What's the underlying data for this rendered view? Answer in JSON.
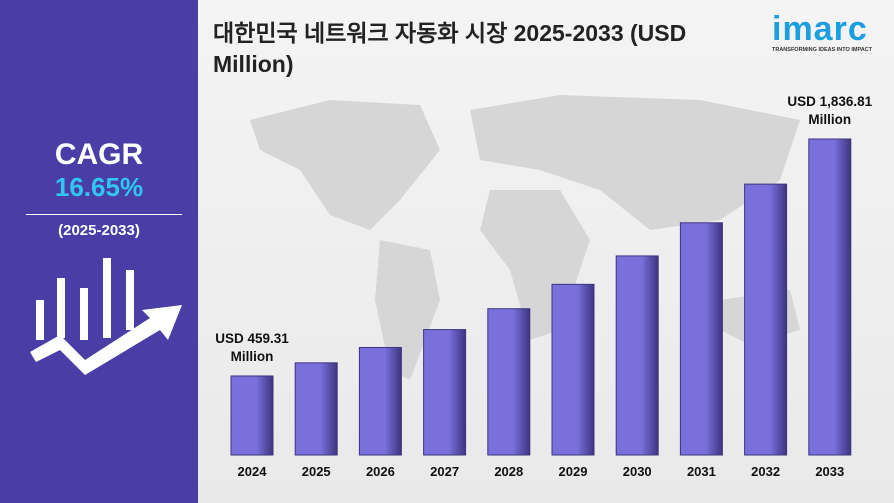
{
  "sidebar": {
    "label": "CAGR",
    "value": "16.65%",
    "period": "(2025-2033)"
  },
  "logo": {
    "name": "imarc",
    "tagline": "TRANSFORMING IDEAS INTO IMPACT"
  },
  "chart_data": {
    "type": "bar",
    "title": "대한민국 네트워크 자동화 시장 2025-2033 (USD Million)",
    "categories": [
      "2024",
      "2025",
      "2026",
      "2027",
      "2028",
      "2029",
      "2030",
      "2031",
      "2032",
      "2033"
    ],
    "values": [
      459.31,
      535.8,
      625.0,
      729.0,
      850.4,
      992.0,
      1157.2,
      1349.8,
      1574.6,
      1836.81
    ],
    "value_labels": [
      "USD 459.31 Million",
      null,
      null,
      null,
      null,
      null,
      null,
      null,
      null,
      "USD 1,836.81 Million"
    ],
    "color": "#7b6fdb"
  }
}
